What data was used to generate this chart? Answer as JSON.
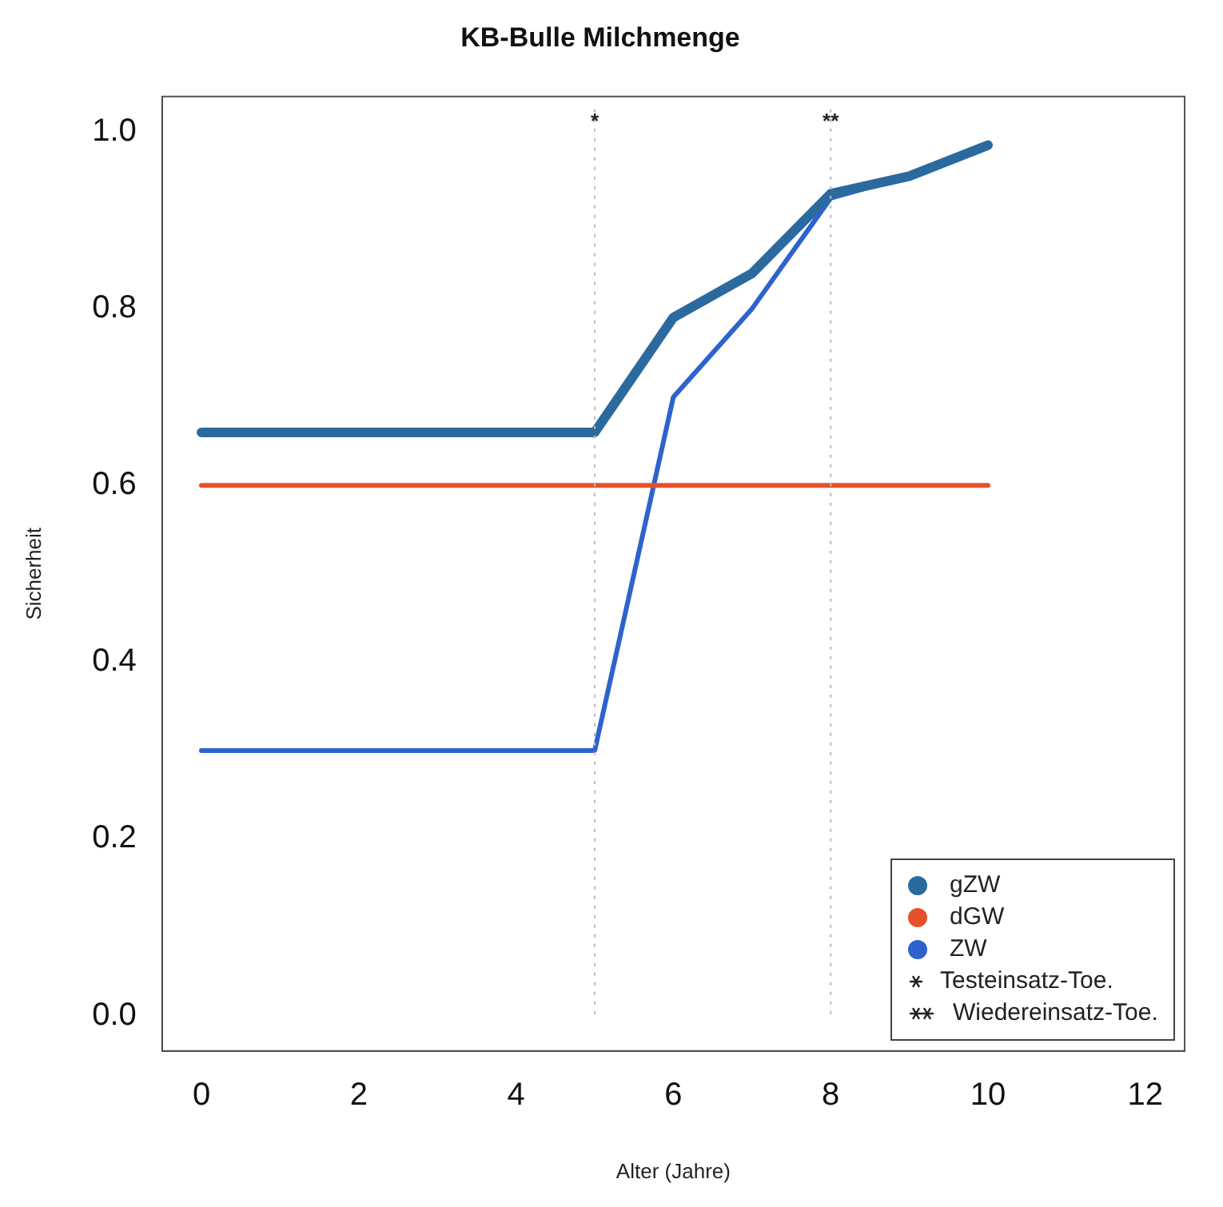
{
  "chart_data": {
    "type": "line",
    "title": "KB-Bulle Milchmenge",
    "xlabel": "Alter (Jahre)",
    "ylabel": "Sicherheit",
    "x": [
      0,
      1,
      2,
      3,
      4,
      5,
      6,
      7,
      8,
      9,
      10
    ],
    "series": [
      {
        "name": "gZW",
        "color": "#2b6a9e",
        "values": [
          0.66,
          0.66,
          0.66,
          0.66,
          0.66,
          0.66,
          0.79,
          0.84,
          0.93,
          0.95,
          0.985
        ]
      },
      {
        "name": "dGW",
        "color": "#e8502a",
        "values": [
          0.6,
          0.6,
          0.6,
          0.6,
          0.6,
          0.6,
          0.6,
          0.6,
          0.6,
          0.6,
          0.6
        ]
      },
      {
        "name": "ZW",
        "color": "#2d62cf",
        "values": [
          0.3,
          0.3,
          0.3,
          0.3,
          0.3,
          0.3,
          0.7,
          0.8,
          0.925,
          0.95,
          0.985
        ]
      }
    ],
    "xlim": [
      -0.5,
      12.5
    ],
    "xticks": [
      0,
      2,
      4,
      6,
      8,
      10,
      12
    ],
    "ylim": [
      -0.04,
      1.04
    ],
    "yticks": [
      {
        "value": 0,
        "label": "0.0"
      },
      0.2,
      0.4,
      0.6,
      0.8,
      {
        "value": 1,
        "label": "1.0"
      }
    ],
    "ref_lines": [
      {
        "axis": "x",
        "value": 5,
        "label": "*",
        "line_style": "dotted",
        "color": "#bbbbbb"
      },
      {
        "axis": "x",
        "value": 8,
        "label": "**",
        "line_style": "dotted",
        "color": "#bbbbbb"
      }
    ],
    "annotations": [
      "Testeinsatz-Toe.",
      "Wiedereinsatz-Toe."
    ],
    "legend": "bottom right",
    "grid": false,
    "marker": "none",
    "line_style": "solid"
  }
}
